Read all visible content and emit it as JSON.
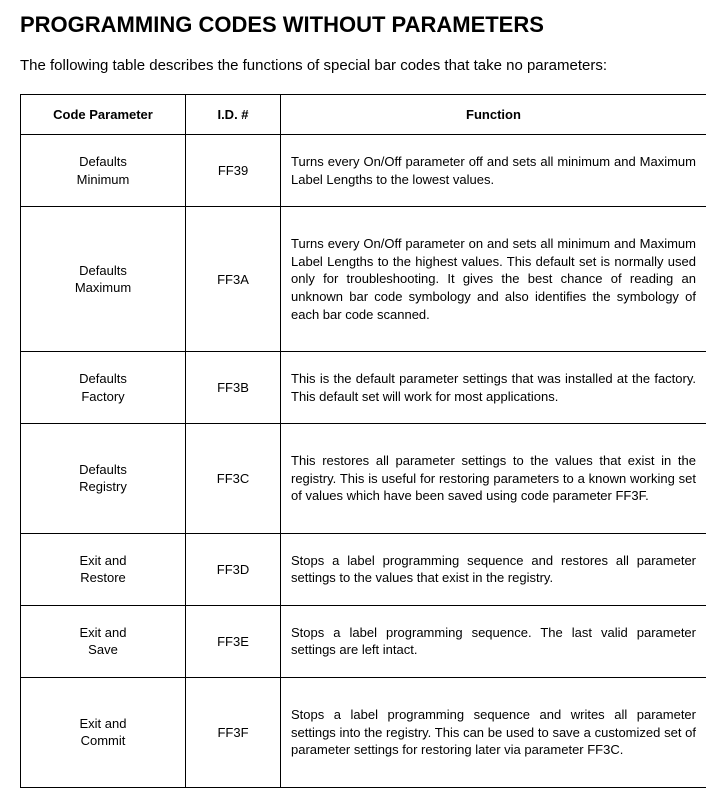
{
  "title": "PROGRAMMING CODES WITHOUT PARAMETERS",
  "intro": "The following table describes the functions of special bar codes that take no parameters:",
  "headers": {
    "col1": "Code Parameter",
    "col2": "I.D. #",
    "col3": "Function"
  },
  "rows": [
    {
      "param_l1": "Defaults",
      "param_l2": "Minimum",
      "id": "FF39",
      "func": "Turns every On/Off parameter off and sets all minimum and Maximum Label Lengths to the lowest values.",
      "tall": false
    },
    {
      "param_l1": "Defaults",
      "param_l2": "Maximum",
      "id": "FF3A",
      "func": "Turns every On/Off parameter on and sets all minimum and Maximum Label Lengths to the highest values. This default set is normally used only for troubleshooting. It gives the best chance of reading an unknown bar code symbology and also identifies the symbology of each bar code scanned.",
      "tall": true
    },
    {
      "param_l1": "Defaults",
      "param_l2": "Factory",
      "id": "FF3B",
      "func": "This is the default parameter settings that was installed at the factory. This default set will work for most applications.",
      "tall": false
    },
    {
      "param_l1": "Defaults",
      "param_l2": "Registry",
      "id": "FF3C",
      "func": "This restores all parameter settings to the values that exist in the registry. This is useful for restoring parameters to a known working set of values which have been saved using code parameter FF3F.",
      "tall": true
    },
    {
      "param_l1": "Exit and",
      "param_l2": "Restore",
      "id": "FF3D",
      "func": "Stops a label programming sequence and restores all parameter settings to the values that exist in the registry.",
      "tall": false
    },
    {
      "param_l1": "Exit and",
      "param_l2": "Save",
      "id": "FF3E",
      "func": "Stops a label programming sequence. The last valid parameter settings are left intact.",
      "tall": false
    },
    {
      "param_l1": "Exit and",
      "param_l2": "Commit",
      "id": "FF3F",
      "func": "Stops a label programming sequence and writes all parameter settings into the registry. This can be used to save a customized set of parameter settings for restoring later via parameter FF3C.",
      "tall": true
    }
  ]
}
